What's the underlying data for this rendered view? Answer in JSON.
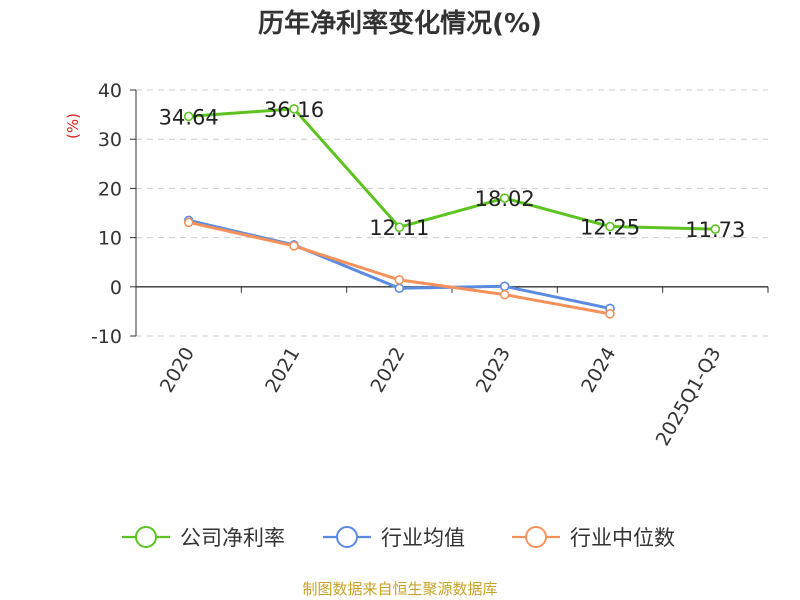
{
  "chart_data": {
    "type": "line",
    "title": "历年净利率变化情况(%)",
    "ylabel": "(%)",
    "categories": [
      "2020",
      "2021",
      "2022",
      "2023",
      "2024",
      "2025Q1-Q3"
    ],
    "ylim": [
      -10,
      40
    ],
    "yticks": [
      "-10",
      "0",
      "10",
      "20",
      "30",
      "40"
    ],
    "grid": true,
    "legend_position": "bottom",
    "series": [
      {
        "name": "公司净利率",
        "color": "#5cc320",
        "values": [
          34.64,
          36.16,
          12.11,
          18.02,
          12.25,
          11.73
        ],
        "labels": [
          "34.64",
          "36.16",
          "12.11",
          "18.02",
          "12.25",
          "11.73"
        ]
      },
      {
        "name": "行业均值",
        "color": "#5b8be0",
        "values": [
          13.5,
          8.5,
          -0.3,
          0.1,
          -4.4,
          null
        ]
      },
      {
        "name": "行业中位数",
        "color": "#f5925c",
        "values": [
          13.1,
          8.3,
          1.4,
          -1.6,
          -5.5,
          null
        ]
      }
    ]
  },
  "colors": {
    "axis": "#333333",
    "grid": "#cccccc",
    "unit": "#e02020",
    "source": "#c9a227"
  },
  "source": "制图数据来自恒生聚源数据库"
}
